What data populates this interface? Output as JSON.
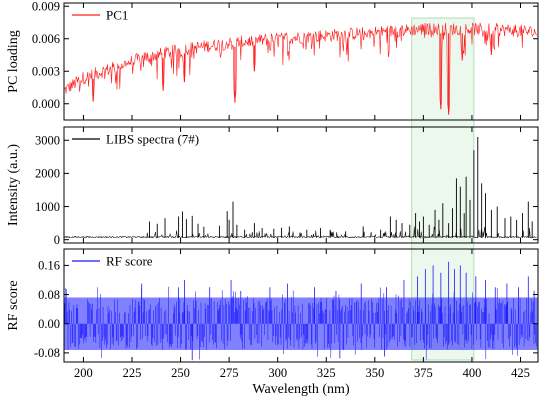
{
  "chart_data": {
    "type": "line",
    "xlabel": "Wavelength (nm)",
    "xlim": [
      190,
      434
    ],
    "x_ticks": [
      200,
      225,
      250,
      275,
      300,
      325,
      350,
      375,
      400,
      425
    ],
    "highlight_region": {
      "x_range": [
        369,
        401
      ],
      "color": "#e9f6ea",
      "border_color": "#9ed8a8"
    },
    "panels": [
      {
        "name": "pc-loading",
        "ylabel": "PC loading",
        "ylim": [
          -0.0015,
          0.0093
        ],
        "y_ticks": [
          0.0,
          0.003,
          0.006,
          0.009
        ],
        "y_tick_labels": [
          "0.000",
          "0.003",
          "0.006",
          "0.009"
        ],
        "series": [
          {
            "name": "PC1",
            "color": "#ff1a1a",
            "baseline_x": [
              190,
              200,
              215,
              230,
              250,
              275,
              300,
              325,
              350,
              375,
              400,
              420,
              433
            ],
            "baseline_y": [
              0.0012,
              0.0024,
              0.0033,
              0.0042,
              0.005,
              0.0056,
              0.006,
              0.0063,
              0.0066,
              0.0069,
              0.0069,
              0.0068,
              0.0066
            ],
            "dips": [
              {
                "x": 205,
                "y": 0.0002
              },
              {
                "x": 241,
                "y": 0.0012
              },
              {
                "x": 252,
                "y": 0.002
              },
              {
                "x": 278,
                "y": 0.0001
              },
              {
                "x": 288,
                "y": 0.003
              },
              {
                "x": 384,
                "y": -0.0005
              },
              {
                "x": 388,
                "y": -0.001
              },
              {
                "x": 395,
                "y": 0.004
              },
              {
                "x": 410,
                "y": 0.0045
              }
            ]
          }
        ]
      },
      {
        "name": "libs-spectra",
        "ylabel": "Intensity (a.u.)",
        "ylim": [
          -100,
          3400
        ],
        "y_ticks": [
          0,
          1000,
          2000,
          3000
        ],
        "y_tick_labels": [
          "0",
          "1000",
          "2000",
          "3000"
        ],
        "series": [
          {
            "name": "LIBS spectra (7#)",
            "color": "#000000",
            "baseline": 60,
            "peaks": [
              {
                "x": 234,
                "y": 550
              },
              {
                "x": 238,
                "y": 480
              },
              {
                "x": 242,
                "y": 650
              },
              {
                "x": 249,
                "y": 700
              },
              {
                "x": 251,
                "y": 850
              },
              {
                "x": 253,
                "y": 620
              },
              {
                "x": 256,
                "y": 720
              },
              {
                "x": 259,
                "y": 480
              },
              {
                "x": 262,
                "y": 390
              },
              {
                "x": 270,
                "y": 420
              },
              {
                "x": 274,
                "y": 860
              },
              {
                "x": 275,
                "y": 600
              },
              {
                "x": 277,
                "y": 1150
              },
              {
                "x": 279,
                "y": 450
              },
              {
                "x": 283,
                "y": 300
              },
              {
                "x": 288,
                "y": 500
              },
              {
                "x": 292,
                "y": 350
              },
              {
                "x": 298,
                "y": 330
              },
              {
                "x": 302,
                "y": 360
              },
              {
                "x": 306,
                "y": 400
              },
              {
                "x": 315,
                "y": 300
              },
              {
                "x": 322,
                "y": 350
              },
              {
                "x": 327,
                "y": 300
              },
              {
                "x": 335,
                "y": 250
              },
              {
                "x": 344,
                "y": 400
              },
              {
                "x": 353,
                "y": 300
              },
              {
                "x": 358,
                "y": 700
              },
              {
                "x": 361,
                "y": 600
              },
              {
                "x": 364,
                "y": 500
              },
              {
                "x": 368,
                "y": 450
              },
              {
                "x": 371,
                "y": 800
              },
              {
                "x": 373,
                "y": 550
              },
              {
                "x": 375,
                "y": 700
              },
              {
                "x": 378,
                "y": 450
              },
              {
                "x": 381,
                "y": 900
              },
              {
                "x": 383,
                "y": 600
              },
              {
                "x": 385,
                "y": 1100
              },
              {
                "x": 388,
                "y": 500
              },
              {
                "x": 390,
                "y": 950
              },
              {
                "x": 392,
                "y": 1850
              },
              {
                "x": 394,
                "y": 1600
              },
              {
                "x": 396,
                "y": 800
              },
              {
                "x": 397,
                "y": 1900
              },
              {
                "x": 399,
                "y": 1200
              },
              {
                "x": 401,
                "y": 2700
              },
              {
                "x": 403,
                "y": 3100
              },
              {
                "x": 405,
                "y": 1700
              },
              {
                "x": 407,
                "y": 1400
              },
              {
                "x": 410,
                "y": 900
              },
              {
                "x": 413,
                "y": 1000
              },
              {
                "x": 417,
                "y": 650
              },
              {
                "x": 420,
                "y": 700
              },
              {
                "x": 423,
                "y": 600
              },
              {
                "x": 426,
                "y": 800
              },
              {
                "x": 429,
                "y": 1150
              },
              {
                "x": 431,
                "y": 550
              }
            ]
          }
        ]
      },
      {
        "name": "rf-score",
        "ylabel": "RF score",
        "ylim": [
          -0.105,
          0.205
        ],
        "y_ticks": [
          -0.08,
          0.0,
          0.08,
          0.16
        ],
        "y_tick_labels": [
          "-0.08",
          "0.00",
          "0.08",
          "0.16"
        ],
        "series": [
          {
            "name": "RF score",
            "color": "#1a1aff",
            "band_positive": 0.072,
            "band_negative": -0.072,
            "max_negative": -0.1,
            "peaks": [
              {
                "x": 230,
                "y": 0.11
              },
              {
                "x": 249,
                "y": 0.1
              },
              {
                "x": 252,
                "y": 0.12
              },
              {
                "x": 265,
                "y": 0.1
              },
              {
                "x": 276,
                "y": 0.12
              },
              {
                "x": 281,
                "y": 0.09
              },
              {
                "x": 296,
                "y": 0.1
              },
              {
                "x": 305,
                "y": 0.11
              },
              {
                "x": 319,
                "y": 0.1
              },
              {
                "x": 330,
                "y": 0.09
              },
              {
                "x": 343,
                "y": 0.11
              },
              {
                "x": 356,
                "y": 0.1
              },
              {
                "x": 365,
                "y": 0.12
              },
              {
                "x": 372,
                "y": 0.13
              },
              {
                "x": 376,
                "y": 0.15
              },
              {
                "x": 380,
                "y": 0.16
              },
              {
                "x": 384,
                "y": 0.14
              },
              {
                "x": 388,
                "y": 0.17
              },
              {
                "x": 391,
                "y": 0.15
              },
              {
                "x": 394,
                "y": 0.16
              },
              {
                "x": 397,
                "y": 0.14
              },
              {
                "x": 402,
                "y": 0.13
              },
              {
                "x": 407,
                "y": 0.12
              },
              {
                "x": 412,
                "y": 0.1
              },
              {
                "x": 418,
                "y": 0.11
              },
              {
                "x": 424,
                "y": 0.1
              },
              {
                "x": 429,
                "y": 0.13
              },
              {
                "x": 432,
                "y": 0.09
              }
            ]
          }
        ]
      }
    ]
  }
}
